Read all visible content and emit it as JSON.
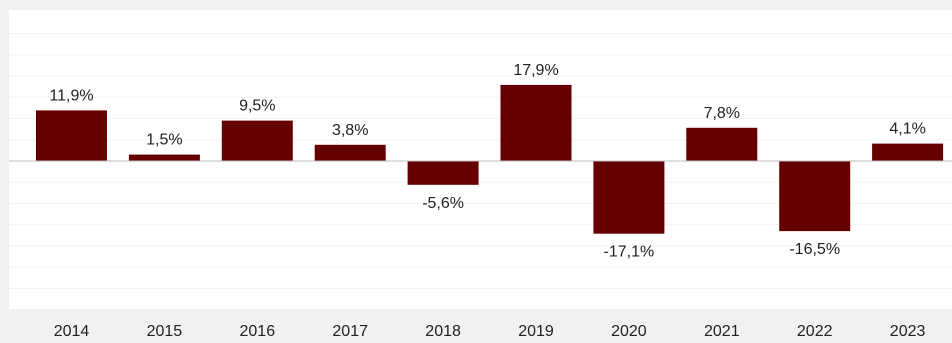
{
  "chart_data": {
    "type": "bar",
    "categories": [
      "2014",
      "2015",
      "2016",
      "2017",
      "2018",
      "2019",
      "2020",
      "2021",
      "2022",
      "2023"
    ],
    "values": [
      11.9,
      1.5,
      9.5,
      3.8,
      -5.6,
      17.9,
      -17.1,
      7.8,
      -16.5,
      4.1
    ],
    "value_labels": [
      "11,9%",
      "1,5%",
      "9,5%",
      "3,8%",
      "-5,6%",
      "17,9%",
      "-17,1%",
      "7,8%",
      "-16,5%",
      "4,1%"
    ],
    "ylim": [
      -33,
      30
    ],
    "grid": true,
    "legend": "none",
    "bar_color": "#660000",
    "plot_background": "#ffffff",
    "page_background": "#f1f1f1",
    "zero_line_color": "#bcbcbc",
    "grid_color": "#f3f3f3"
  }
}
